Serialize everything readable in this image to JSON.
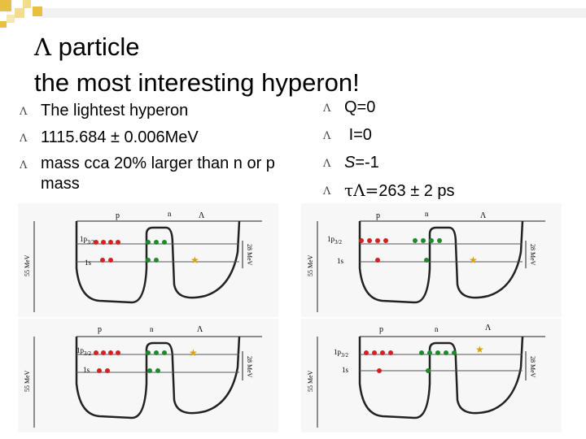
{
  "title": {
    "symbol": "Λ",
    "line1": "particle",
    "line2": "the most interesting hyperon!"
  },
  "bullet_marker": "Λ",
  "left_bullets": [
    "The lightest hyperon",
    "1115.684 ± 0.006MeV",
    "mass cca 20% larger than n or p mass"
  ],
  "right_bullets": {
    "q": "Q=0",
    "i": "I=0",
    "s_symbol": "S",
    "s_value": "=-1",
    "tau_symbol": "τΛ=",
    "tau_value": "263 ± 2 ps"
  },
  "diagram_labels": {
    "p": "p",
    "n": "n",
    "lambda": "Λ",
    "level_p32": "1p3/2",
    "level_1s": "1s",
    "depth_55": "55 MeV",
    "depth_28": "28 MeV"
  },
  "colors": {
    "proton": "#d42020",
    "neutron": "#1f8a2a",
    "lambda_star": "#e0a000",
    "title_decoration": "#e8c040"
  }
}
